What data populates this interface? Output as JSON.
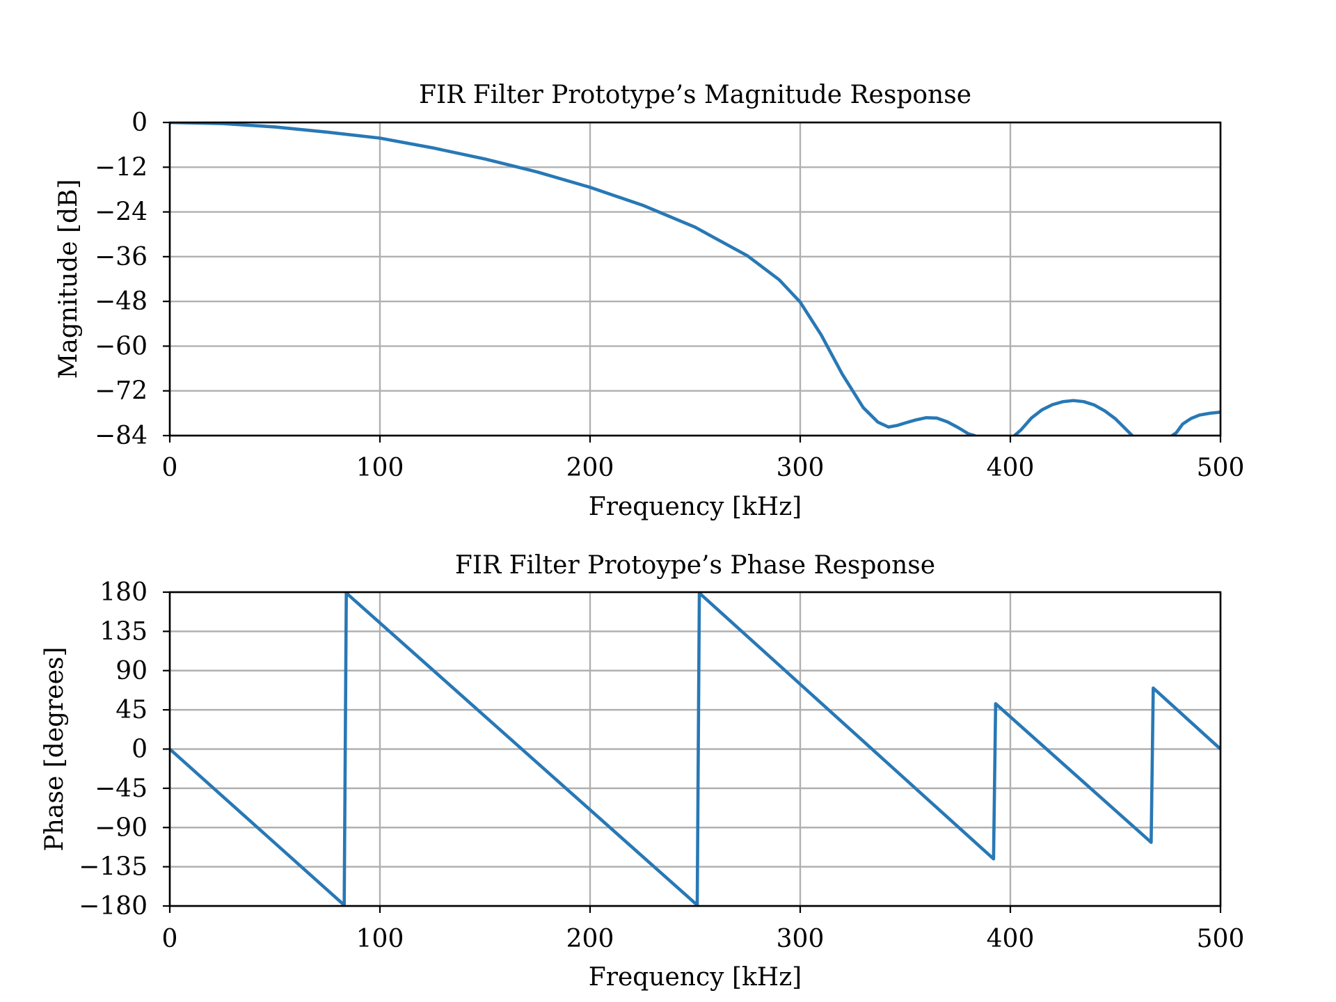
{
  "chart_data": [
    {
      "type": "line",
      "title": "FIR Filter Prototype’s Magnitude Response",
      "xlabel": "Frequency [kHz]",
      "ylabel": "Magnitude [dB]",
      "xlim": [
        0,
        500
      ],
      "ylim": [
        -84,
        0
      ],
      "xticks": [
        0,
        100,
        200,
        300,
        400,
        500
      ],
      "xtick_labels": [
        "0",
        "100",
        "200",
        "300",
        "400",
        "500"
      ],
      "yticks": [
        0,
        -12,
        -24,
        -36,
        -48,
        -60,
        -72,
        -84
      ],
      "ytick_labels": [
        "0",
        "−12",
        "−24",
        "−36",
        "−48",
        "−60",
        "−72",
        "−84"
      ],
      "grid": true,
      "color": "#2878b5",
      "series": [
        {
          "x": [
            0,
            25,
            50,
            75,
            100,
            125,
            150,
            175,
            200,
            225,
            250,
            275,
            290,
            300,
            310,
            320,
            330,
            337,
            342,
            346,
            350,
            355,
            360,
            365,
            370,
            375,
            380,
            383,
            384,
            386,
            390,
            400,
            401,
            402,
            405,
            410,
            415,
            420,
            425,
            430,
            435,
            440,
            445,
            450,
            455,
            458,
            459,
            462,
            470,
            476,
            477,
            479,
            482,
            486,
            490,
            495,
            500
          ],
          "y": [
            0,
            -0.3,
            -1.2,
            -2.6,
            -4.2,
            -6.8,
            -9.8,
            -13.3,
            -17.4,
            -22.2,
            -28.1,
            -35.8,
            -42.2,
            -48.2,
            -57.0,
            -67.5,
            -76.5,
            -80.4,
            -81.7,
            -81.3,
            -80.6,
            -79.8,
            -79.2,
            -79.3,
            -80.3,
            -81.8,
            -83.5,
            -84,
            -85,
            -88,
            -90,
            -90,
            -85,
            -84,
            -82.5,
            -79.3,
            -77.1,
            -75.7,
            -74.9,
            -74.6,
            -74.9,
            -75.8,
            -77.4,
            -79.5,
            -82.3,
            -84,
            -85,
            -88,
            -90,
            -85,
            -84,
            -83.2,
            -80.9,
            -79.4,
            -78.5,
            -78.0,
            -77.7
          ]
        }
      ]
    },
    {
      "type": "line",
      "title": "FIR Filter Protoype’s Phase Response",
      "xlabel": "Frequency [kHz]",
      "ylabel": "Phase [degrees]",
      "xlim": [
        0,
        500
      ],
      "ylim": [
        -180,
        180
      ],
      "xticks": [
        0,
        100,
        200,
        300,
        400,
        500
      ],
      "xtick_labels": [
        "0",
        "100",
        "200",
        "300",
        "400",
        "500"
      ],
      "yticks": [
        180,
        135,
        90,
        45,
        0,
        -45,
        -90,
        -135,
        -180
      ],
      "ytick_labels": [
        "180",
        "135",
        "90",
        "45",
        "0",
        "−45",
        "−90",
        "−135",
        "−180"
      ],
      "grid": true,
      "color": "#2878b5",
      "series": [
        {
          "x": [
            0,
            83,
            84,
            251,
            252,
            392,
            393,
            467,
            468,
            500
          ],
          "y": [
            0,
            -179,
            179,
            -179,
            179,
            -126,
            52,
            -107,
            70,
            0
          ]
        }
      ]
    }
  ]
}
